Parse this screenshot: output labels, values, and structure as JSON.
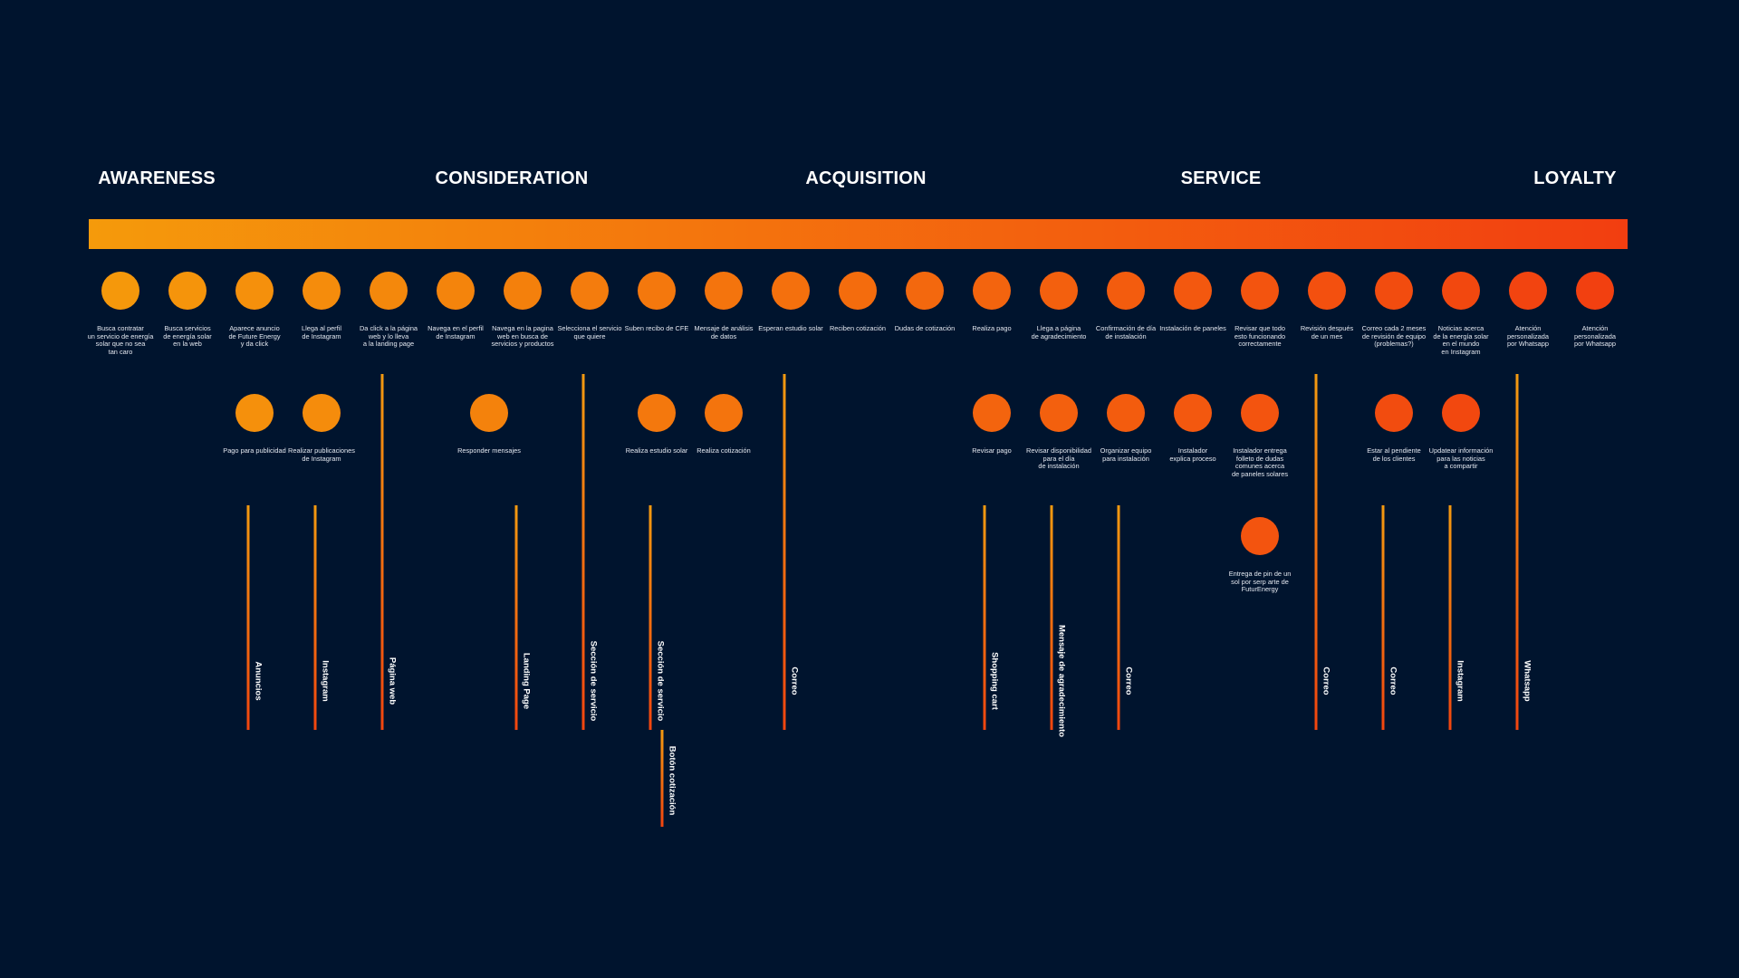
{
  "colors": {
    "background": "#00142e",
    "gradient_start": "#f59a0b",
    "gradient_end": "#f23e10",
    "text": "#ffffff"
  },
  "stages": [
    "AWARENESS",
    "CONSIDERATION",
    "ACQUISITION",
    "SERVICE",
    "LOYALTY"
  ],
  "row1": [
    "Busca contratar\nun servicio de energía\nsolar que no sea\ntan caro",
    "Busca servicios\nde energía solar\nen la web",
    "Aparece anuncio\nde Future Energy\ny da click",
    "Llega al perfil\nde Instagram",
    "Da click a la página\nweb y lo lleva\na la landing page",
    "Navega en el perfil\nde Instagram",
    "Navega en la pagina\nweb en busca de\nservicios y productos",
    "Selecciona el servicio\nque quiere",
    "Suben recibo de CFE",
    "Mensaje de análisis\nde datos",
    "Esperan estudio solar",
    "Reciben cotización",
    "Dudas de cotización",
    "Realiza pago",
    "Llega a página\nde agradecimiento",
    "Confirmación de día\nde instalación",
    "Instalación de paneles",
    "Revisar que todo\nesto funcionando\ncorrectamente",
    "Revisión después\nde un mes",
    "Correo cada 2 meses\nde revisión de equipo\n(problemas?)",
    "Noticias acerca\nde la energía solar\nen el mundo\nen Instagram",
    "Atención\npersonalizada\npor Whatsapp",
    "Atención\npersonalizada\npor Whatsapp"
  ],
  "row2": [
    "Pago para publicidad",
    "Realizar publicaciones\nde Instagram",
    "Responder mensajes",
    "Realiza estudio solar",
    "Realiza cotización",
    "Revisar pago",
    "Revisar disponibilidad\npara el día\nde instalación",
    "Organizar equipo\npara instalación",
    "Instalador\nexplica proceso",
    "Instalador entrega\nfolleto de dudas\ncomunes acerca\nde paneles solares",
    "Estar al pendiente\nde los clientes",
    "Updatear información\npara las noticias\na compartir"
  ],
  "row3": [
    "Entrega de pin de un\nsol por serp arte de\nFuturEnergy"
  ],
  "channels": [
    "Anuncios",
    "Instagram",
    "Página web",
    "Landing Page",
    "Sección de servicio",
    "Sección de servicio",
    "Botón cotización",
    "Correo",
    "Shopping cart",
    "Mensaje de agradecimiento",
    "Correo",
    "Correo",
    "Correo",
    "Instagram",
    "Whatsapp"
  ]
}
